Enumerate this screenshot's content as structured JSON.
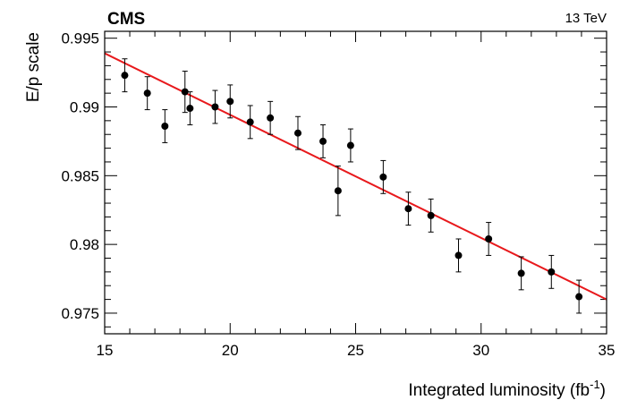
{
  "chart_data": {
    "type": "scatter",
    "experiment_label": "CMS",
    "energy_label": "13 TeV",
    "xlabel_main": "Integrated luminosity (fb",
    "xlabel_sup": "-1",
    "xlabel_close": ")",
    "ylabel": "E/p scale",
    "xlim": [
      15,
      35
    ],
    "ylim": [
      0.9735,
      0.9955
    ],
    "x_ticks": [
      15,
      20,
      25,
      30,
      35
    ],
    "y_ticks": [
      0.975,
      0.98,
      0.985,
      0.99,
      0.995
    ],
    "y_tick_labels": [
      "0.975",
      "0.98",
      "0.985",
      "0.99",
      "0.995"
    ],
    "grid": false,
    "colors": {
      "points": "#000000",
      "fit_line": "#e8191c",
      "axes": "#000000"
    },
    "series": [
      {
        "type": "points_with_error_bars",
        "points": [
          {
            "x": 15.8,
            "y": 0.9923,
            "err": 0.0012
          },
          {
            "x": 16.7,
            "y": 0.991,
            "err": 0.0012
          },
          {
            "x": 17.4,
            "y": 0.9886,
            "err": 0.0012
          },
          {
            "x": 18.2,
            "y": 0.9911,
            "err": 0.0015
          },
          {
            "x": 18.4,
            "y": 0.9899,
            "err": 0.0012
          },
          {
            "x": 19.4,
            "y": 0.99,
            "err": 0.0012
          },
          {
            "x": 20.0,
            "y": 0.9904,
            "err": 0.0012
          },
          {
            "x": 20.8,
            "y": 0.9889,
            "err": 0.0012
          },
          {
            "x": 21.6,
            "y": 0.9892,
            "err": 0.0012
          },
          {
            "x": 22.7,
            "y": 0.9881,
            "err": 0.0012
          },
          {
            "x": 23.7,
            "y": 0.9875,
            "err": 0.0012
          },
          {
            "x": 24.3,
            "y": 0.9839,
            "err": 0.0018
          },
          {
            "x": 24.8,
            "y": 0.9872,
            "err": 0.0012
          },
          {
            "x": 26.1,
            "y": 0.9849,
            "err": 0.0012
          },
          {
            "x": 27.1,
            "y": 0.9826,
            "err": 0.0012
          },
          {
            "x": 28.0,
            "y": 0.9821,
            "err": 0.0012
          },
          {
            "x": 29.1,
            "y": 0.9792,
            "err": 0.0012
          },
          {
            "x": 30.3,
            "y": 0.9804,
            "err": 0.0012
          },
          {
            "x": 31.6,
            "y": 0.9779,
            "err": 0.0012
          },
          {
            "x": 32.8,
            "y": 0.978,
            "err": 0.0012
          },
          {
            "x": 33.9,
            "y": 0.9762,
            "err": 0.0012
          }
        ]
      },
      {
        "type": "line",
        "x": [
          15,
          35
        ],
        "y": [
          0.9939,
          0.976
        ]
      }
    ]
  }
}
